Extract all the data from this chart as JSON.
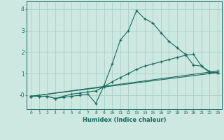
{
  "xlabel": "Humidex (Indice chaleur)",
  "ylabel": "",
  "bg_color": "#cce8e0",
  "grid_color": "#aacfc8",
  "line_color": "#1a6b60",
  "xlim": [
    -0.5,
    23.5
  ],
  "ylim": [
    -0.65,
    4.35
  ],
  "xticks": [
    0,
    1,
    2,
    3,
    4,
    5,
    6,
    7,
    8,
    9,
    10,
    11,
    12,
    13,
    14,
    15,
    16,
    17,
    18,
    19,
    20,
    21,
    22,
    23
  ],
  "yticks": [
    0,
    1,
    2,
    3,
    4
  ],
  "ytick_labels": [
    "-0",
    "1",
    "2",
    "3",
    "4"
  ],
  "series": [
    {
      "x": [
        0,
        1,
        2,
        3,
        4,
        5,
        6,
        7,
        8,
        9,
        10,
        11,
        12,
        13,
        14,
        15,
        16,
        17,
        18,
        19,
        20,
        21,
        22,
        23
      ],
      "y": [
        -0.05,
        -0.05,
        -0.05,
        -0.15,
        -0.1,
        -0.05,
        0.0,
        0.05,
        -0.38,
        0.45,
        1.45,
        2.55,
        3.0,
        3.92,
        3.55,
        3.35,
        2.9,
        2.5,
        2.2,
        1.9,
        1.4,
        1.35,
        1.05,
        1.05
      ]
    },
    {
      "x": [
        0,
        1,
        2,
        3,
        4,
        5,
        6,
        7,
        8,
        9,
        10,
        11,
        12,
        13,
        14,
        15,
        16,
        17,
        18,
        19,
        20,
        21,
        22,
        23
      ],
      "y": [
        -0.05,
        -0.05,
        -0.05,
        -0.15,
        -0.05,
        0.05,
        0.1,
        0.15,
        0.2,
        0.4,
        0.62,
        0.82,
        1.0,
        1.2,
        1.35,
        1.45,
        1.55,
        1.65,
        1.75,
        1.85,
        1.9,
        1.35,
        1.1,
        1.05
      ]
    },
    {
      "x": [
        0,
        23
      ],
      "y": [
        -0.05,
        1.05
      ]
    },
    {
      "x": [
        0,
        23
      ],
      "y": [
        -0.05,
        1.12
      ]
    }
  ]
}
